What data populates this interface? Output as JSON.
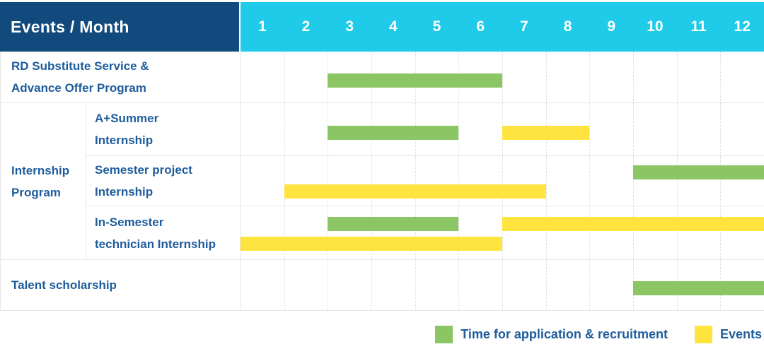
{
  "colors": {
    "header_navy": "#124A7E",
    "header_cyan": "#1FCBE8",
    "bar_green": "#8CC564",
    "bar_yellow": "#FFE33E",
    "label_text_blue": "#1E5C9C",
    "grid_line": "#E7E7E7",
    "month_dotted_line": "#DCDCDC"
  },
  "table": {
    "corner_header": "Events / Month"
  },
  "legend": {
    "items": [
      {
        "key": "application",
        "label": "Time for application & recruitment",
        "color": "#8CC564"
      },
      {
        "key": "events",
        "label": "Events",
        "color": "#FFE33E"
      }
    ]
  },
  "chart_data": {
    "type": "table",
    "subtype": "gantt-schedule",
    "title": "Events / Month",
    "x_axis": {
      "label": "Month",
      "ticks": [
        "1",
        "2",
        "3",
        "4",
        "5",
        "6",
        "7",
        "8",
        "9",
        "10",
        "11",
        "12"
      ],
      "range": [
        1,
        12
      ]
    },
    "legend_entries": [
      "Time for application & recruitment",
      "Events"
    ],
    "group_label_lines": [
      "Internship",
      "Program"
    ],
    "rows": [
      {
        "group": null,
        "label": "RD Substitute Service & Advance Offer Program",
        "label_lines": [
          "RD Substitute Service &",
          "Advance Offer Program"
        ],
        "lanes": 1,
        "bars": [
          {
            "series": "application",
            "start_month": 3,
            "end_month": 6,
            "lane": 0
          }
        ]
      },
      {
        "group": "Internship Program",
        "label": "A+Summer Internship",
        "label_lines": [
          "A+Summer",
          "Internship"
        ],
        "lanes": 1,
        "bars": [
          {
            "series": "application",
            "start_month": 3,
            "end_month": 5,
            "lane": 0
          },
          {
            "series": "events",
            "start_month": 7,
            "end_month": 8,
            "lane": 0
          }
        ]
      },
      {
        "group": "Internship Program",
        "label": "Semester project Internship",
        "label_lines": [
          "Semester project",
          "Internship"
        ],
        "lanes": 2,
        "bars": [
          {
            "series": "application",
            "start_month": 10,
            "end_month": 12,
            "lane": 0
          },
          {
            "series": "events",
            "start_month": 2,
            "end_month": 7,
            "lane": 1
          }
        ]
      },
      {
        "group": "Internship Program",
        "label": "In-Semester technician Internship",
        "label_lines": [
          "In-Semester",
          "technician Internship"
        ],
        "lanes": 2,
        "bars": [
          {
            "series": "application",
            "start_month": 3,
            "end_month": 5,
            "lane": 0
          },
          {
            "series": "events",
            "start_month": 7,
            "end_month": 12,
            "lane": 0
          },
          {
            "series": "events",
            "start_month": 1,
            "end_month": 6,
            "lane": 1
          }
        ]
      },
      {
        "group": null,
        "label": "Talent scholarship",
        "label_lines": [
          "Talent scholarship"
        ],
        "lanes": 1,
        "bars": [
          {
            "series": "application",
            "start_month": 10,
            "end_month": 12,
            "lane": 0
          }
        ]
      }
    ]
  }
}
